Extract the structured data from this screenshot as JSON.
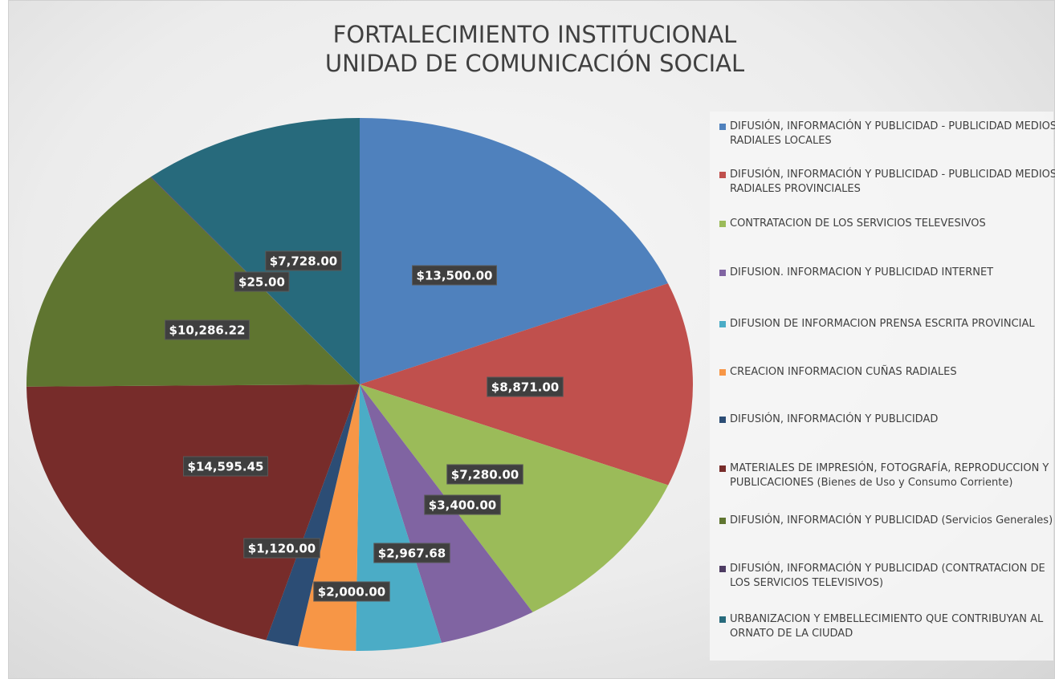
{
  "chart_data": {
    "type": "pie",
    "title": [
      "FORTALECIMIENTO INSTITUCIONAL",
      "UNIDAD DE COMUNICACIÓN SOCIAL"
    ],
    "categories": [
      "DIFUSIÓN, INFORMACIÓN Y PUBLICIDAD - PUBLICIDAD MEDIOS RADIALES LOCALES",
      "DIFUSIÓN, INFORMACIÓN Y PUBLICIDAD - PUBLICIDAD MEDIOS RADIALES PROVINCIALES",
      "CONTRATACION DE LOS SERVICIOS TELEVESIVOS",
      "DIFUSION. INFORMACION Y PUBLICIDAD INTERNET",
      "DIFUSION DE INFORMACION PRENSA ESCRITA PROVINCIAL",
      "CREACION INFORMACION CUÑAS RADIALES",
      "DIFUSIÓN, INFORMACIÓN Y PUBLICIDAD",
      "MATERIALES DE IMPRESIÓN, FOTOGRAFÍA, REPRODUCCION Y PUBLICACIONES (Bienes de Uso y Consumo Corriente)",
      "DIFUSIÓN, INFORMACIÓN Y PUBLICIDAD (Servicios Generales)",
      "DIFUSIÓN, INFORMACIÓN Y PUBLICIDAD (CONTRATACION DE LOS SERVICIOS TELEVISIVOS)",
      "URBANIZACION Y EMBELLECIMIENTO  QUE CONTRIBUYAN AL ORNATO DE LA CIUDAD"
    ],
    "values": [
      13500,
      8871,
      7280,
      3400,
      2967.68,
      2000,
      1120,
      14595.45,
      10286.22,
      25,
      7728
    ],
    "value_labels": [
      "$13,500.00",
      "$8,871.00",
      "$7,280.00",
      "$3,400.00",
      "$2,967.68",
      "$2,000.00",
      "$1,120.00",
      "$14,595.45",
      "$10,286.22",
      "$25.00",
      "$7,728.00"
    ],
    "colors": [
      "#4f81bd",
      "#c0504d",
      "#9bbb59",
      "#8064a2",
      "#4bacc6",
      "#f79646",
      "#2c4d75",
      "#772c2a",
      "#5f7530",
      "#4d3b62",
      "#276a7c"
    ],
    "legend": "right"
  }
}
